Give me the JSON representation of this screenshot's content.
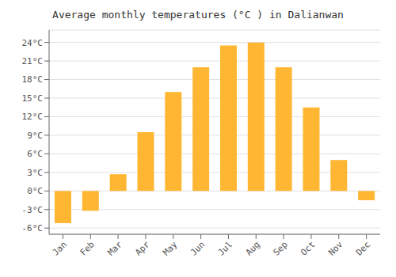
{
  "chart_data": {
    "type": "bar",
    "title": "Average monthly temperatures (°C ) in Dalianwan",
    "categories": [
      "Jan",
      "Feb",
      "Mar",
      "Apr",
      "May",
      "Jun",
      "Jul",
      "Aug",
      "Sep",
      "Oct",
      "Nov",
      "Dec"
    ],
    "values": [
      -5.2,
      -3.2,
      2.7,
      9.5,
      16.0,
      20.0,
      23.5,
      24.0,
      20.0,
      13.5,
      5.0,
      -1.5
    ],
    "color": "#FFB733",
    "ylim": [
      -7,
      26
    ],
    "yticks": [
      {
        "value": -6,
        "label": "-6°C"
      },
      {
        "value": -3,
        "label": "-3°C"
      },
      {
        "value": 0,
        "label": "0°C"
      },
      {
        "value": 3,
        "label": "3°C"
      },
      {
        "value": 6,
        "label": "6°C"
      },
      {
        "value": 9,
        "label": "9°C"
      },
      {
        "value": 12,
        "label": "12°C"
      },
      {
        "value": 15,
        "label": "15°C"
      },
      {
        "value": 18,
        "label": "18°C"
      },
      {
        "value": 21,
        "label": "21°C"
      },
      {
        "value": 24,
        "label": "24°C"
      }
    ],
    "grid": true
  }
}
